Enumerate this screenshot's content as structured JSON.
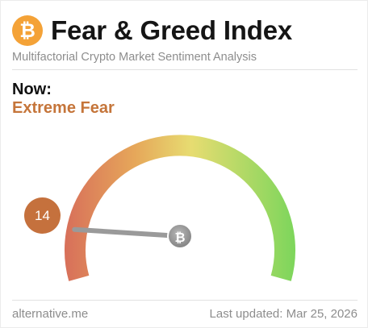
{
  "header": {
    "title": "Fear & Greed Index",
    "subtitle": "Multifactorial Crypto Market Sentiment Analysis",
    "logo_icon": "bitcoin-icon",
    "logo_glyph": "₿"
  },
  "current": {
    "label": "Now:",
    "classification": "Extreme Fear",
    "value": "14",
    "value_numeric": 14,
    "scale_max": 100
  },
  "gauge": {
    "hub_icon": "bitcoin-icon",
    "hub_glyph": "₿"
  },
  "footer": {
    "source": "alternative.me",
    "last_updated": "Last updated: Mar 25, 2026"
  },
  "colors": {
    "accent_fear": "#c5753a",
    "value_circle": "#c5713d",
    "bitcoin_orange": "#f4a237",
    "needle": "#9a9a9a",
    "gauge_red": "#d8715a",
    "gauge_orange": "#e6a75a",
    "gauge_yellow": "#e7dc71",
    "gauge_green": "#7fd65c"
  }
}
